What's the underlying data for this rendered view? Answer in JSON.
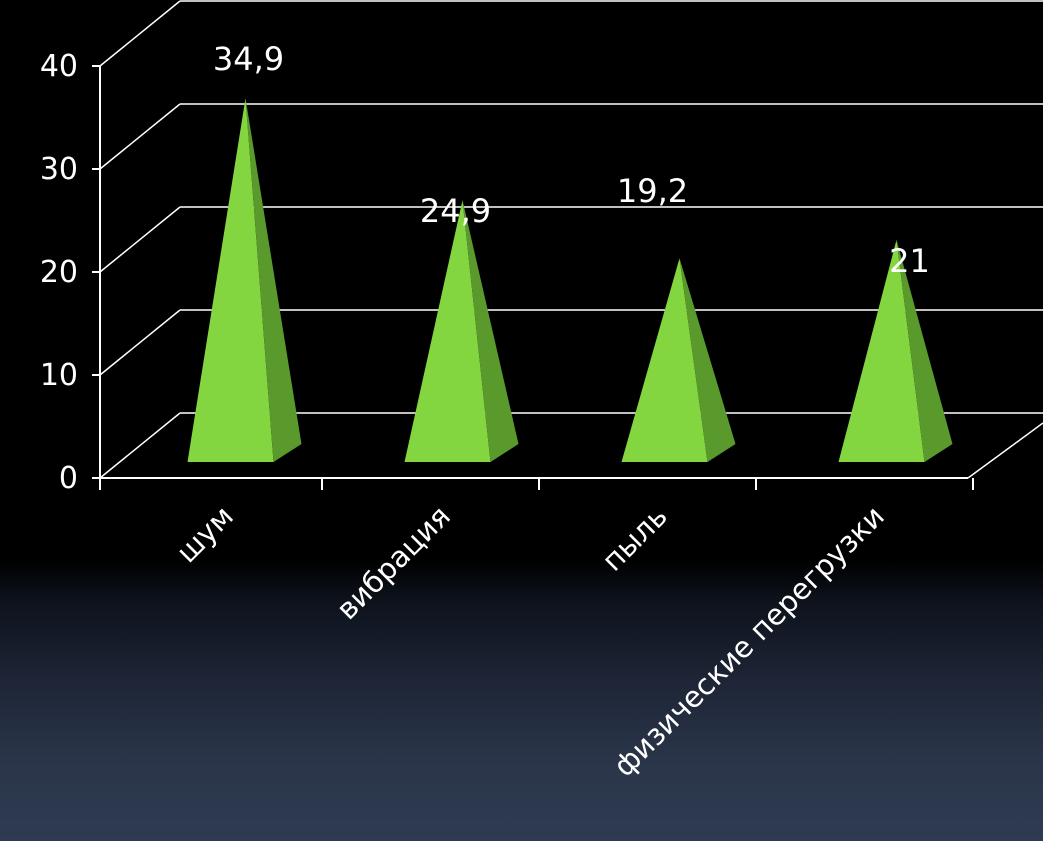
{
  "chart_data": {
    "type": "bar",
    "shape": "pyramid-3d",
    "categories": [
      "шум",
      "вибрация",
      "пыль",
      "физические перегрузки"
    ],
    "values": [
      34.9,
      24.9,
      19.2,
      21
    ],
    "data_labels": [
      "34,9",
      "24,9",
      "19,2",
      "21"
    ],
    "yticks": [
      "0",
      "10",
      "20",
      "30",
      "40"
    ],
    "ylim": [
      0,
      40
    ],
    "grid": true,
    "legend": "none",
    "colors": {
      "front_face": "#84d640",
      "side_face": "#5a9a2c",
      "axis": "#ffffff",
      "grid": "#ffffff",
      "text": "#ffffff",
      "background": "#000000"
    }
  }
}
